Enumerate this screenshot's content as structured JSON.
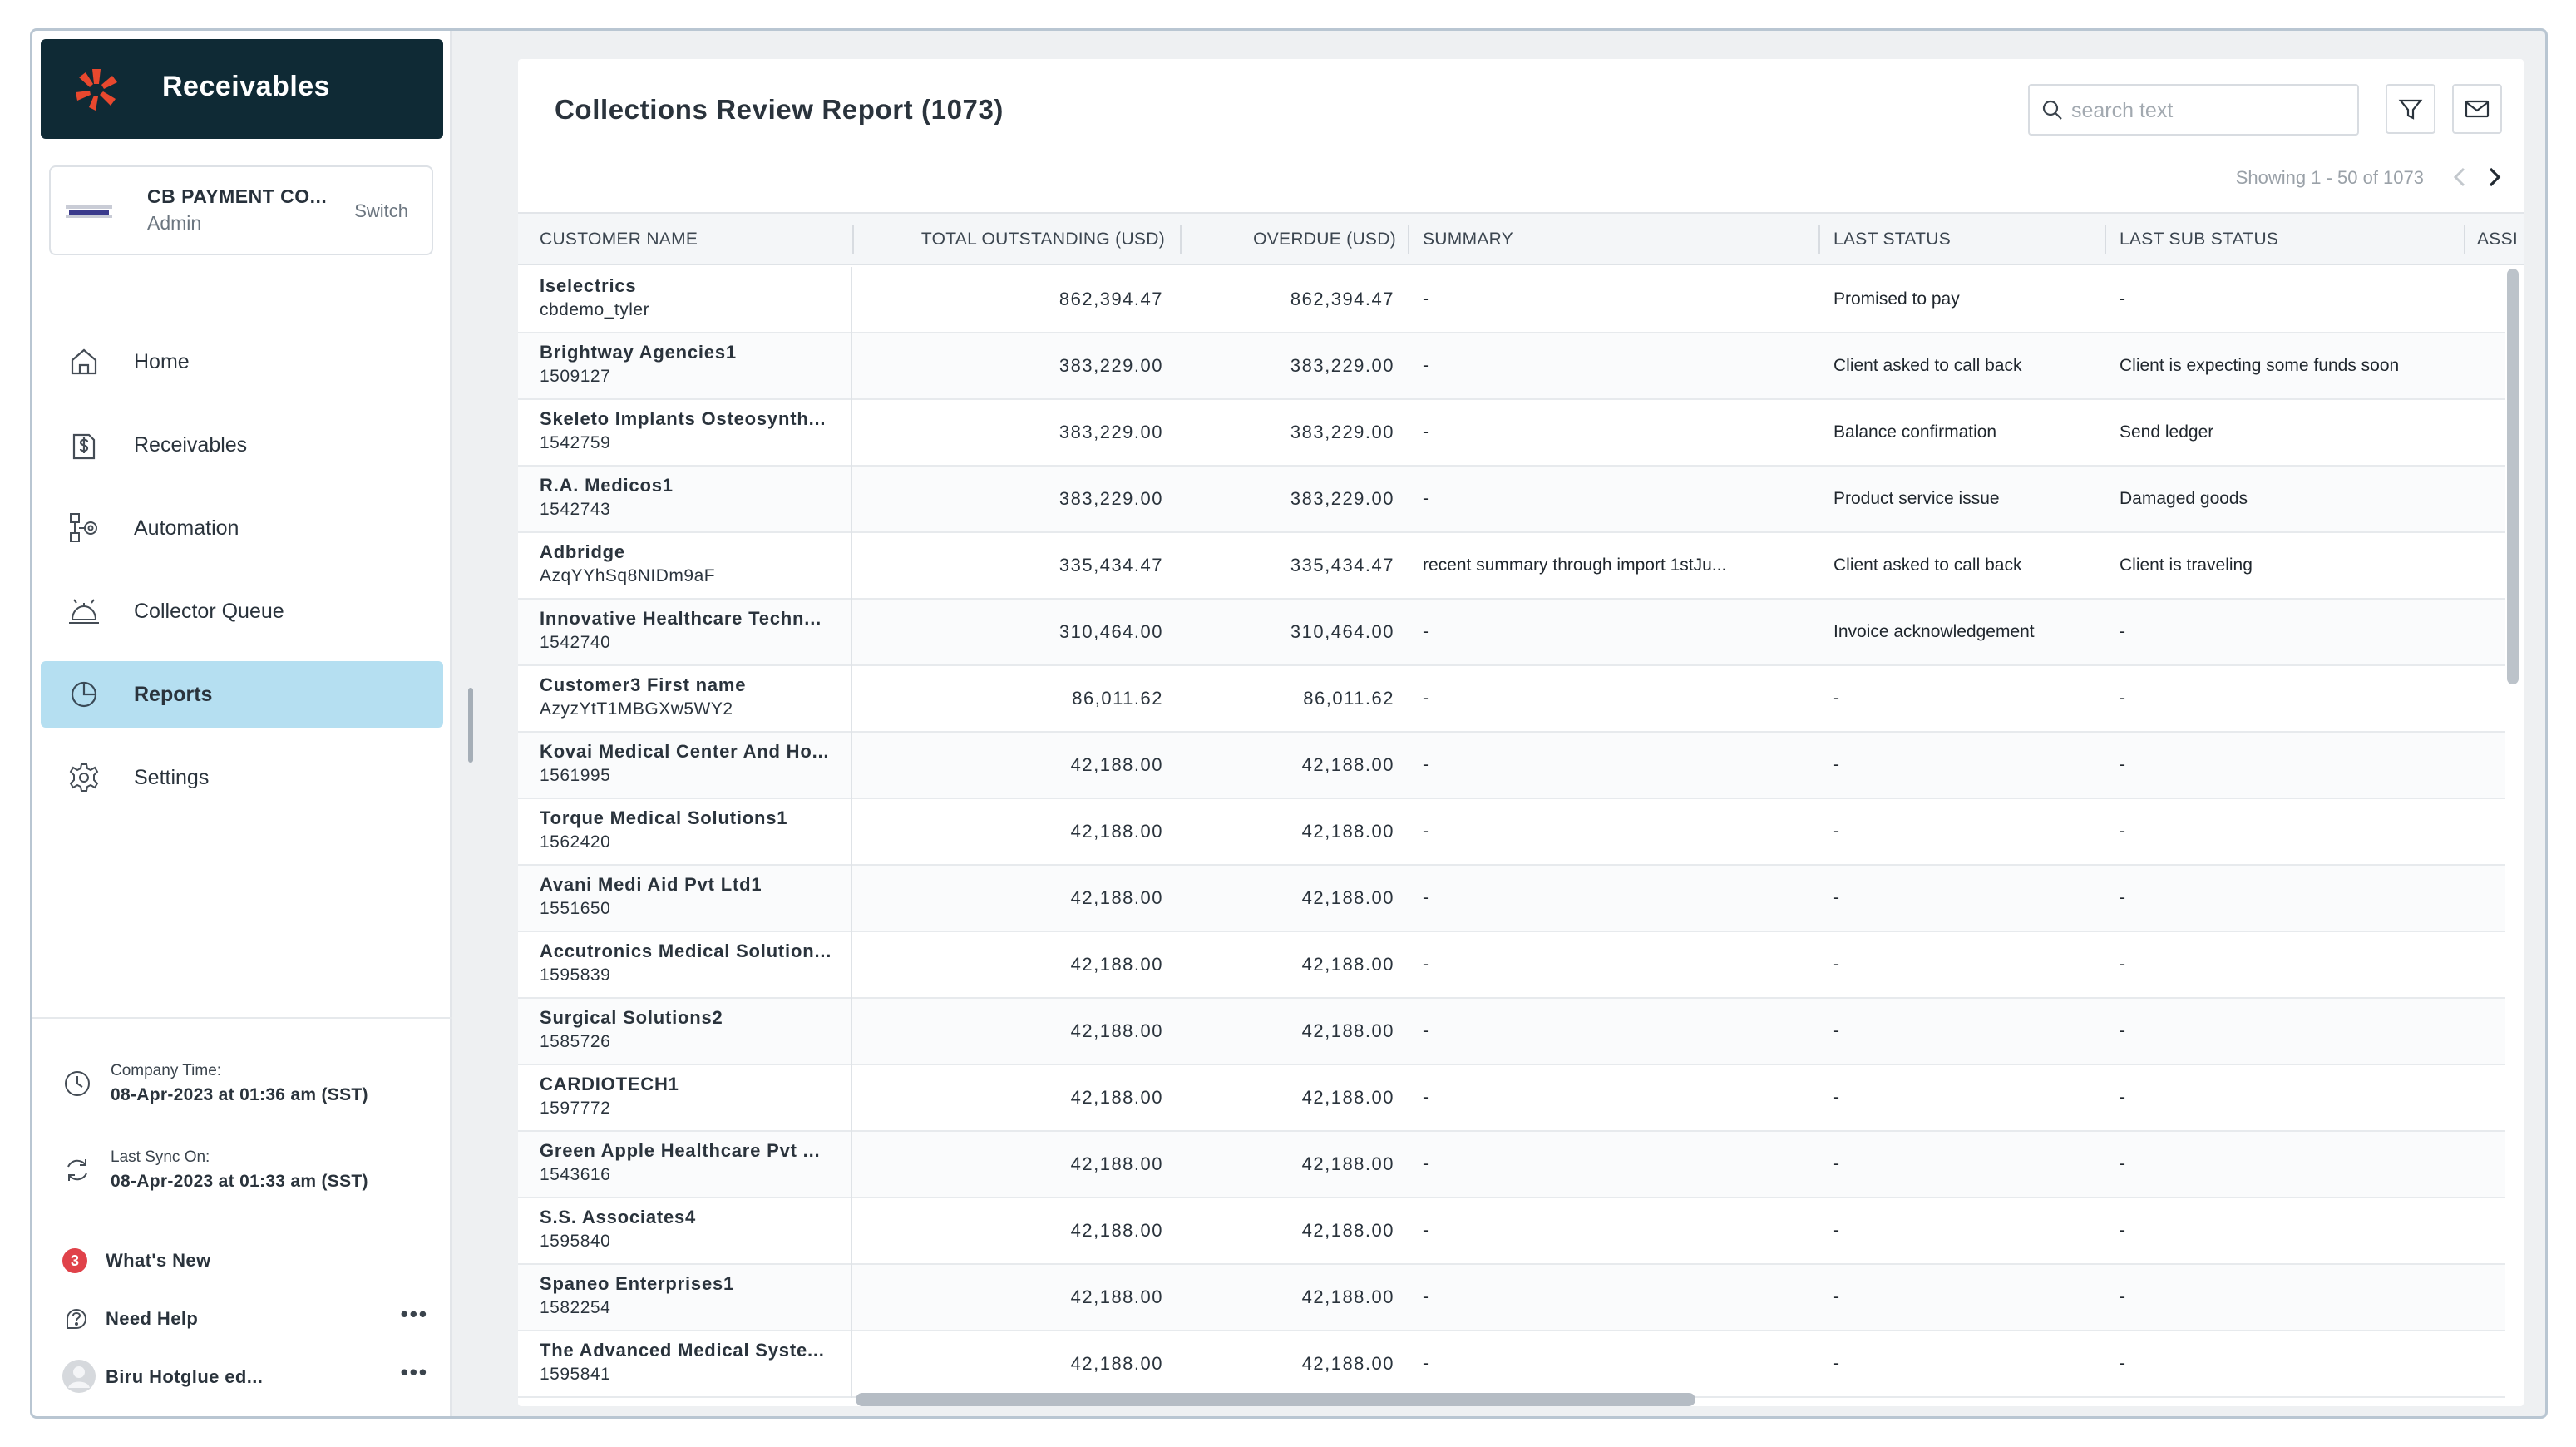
{
  "brand": {
    "title": "Receivables",
    "accent": "#e8482e"
  },
  "company": {
    "name": "CB PAYMENT CO...",
    "role": "Admin",
    "switch_label": "Switch"
  },
  "nav": [
    {
      "label": "Home",
      "icon": "home-icon"
    },
    {
      "label": "Receivables",
      "icon": "dollar-invoice-icon"
    },
    {
      "label": "Automation",
      "icon": "automation-icon"
    },
    {
      "label": "Collector Queue",
      "icon": "service-bell-icon"
    },
    {
      "label": "Reports",
      "icon": "pie-chart-icon",
      "active": true
    },
    {
      "label": "Settings",
      "icon": "gear-icon"
    }
  ],
  "meta": {
    "company_time_label": "Company Time:",
    "company_time_value": "08-Apr-2023 at 01:36 am (SST)",
    "last_sync_label": "Last Sync On:",
    "last_sync_value": "08-Apr-2023 at 01:33 am (SST)"
  },
  "footer": {
    "whats_new_count": "3",
    "whats_new_label": "What's New",
    "need_help_label": "Need Help",
    "user_label": "Biru Hotglue ed..."
  },
  "report": {
    "title": "Collections Review Report (1073)",
    "search_placeholder": "search text",
    "pager_text": "Showing 1 - 50 of 1073"
  },
  "table": {
    "columns": {
      "customer_name": "CUSTOMER NAME",
      "total_outstanding": "TOTAL OUTSTANDING (USD)",
      "overdue": "OVERDUE (USD)",
      "summary": "SUMMARY",
      "last_status": "LAST STATUS",
      "last_sub_status": "LAST SUB STATUS",
      "assigned": "ASSI"
    },
    "rows": [
      {
        "name": "Iselectrics",
        "id": "cbdemo_tyler",
        "total": "862,394.47",
        "overdue": "862,394.47",
        "summary": "-",
        "status": "Promised to pay",
        "sub_status": "-"
      },
      {
        "name": "Brightway Agencies1",
        "id": "1509127",
        "total": "383,229.00",
        "overdue": "383,229.00",
        "summary": "-",
        "status": "Client asked to call back",
        "sub_status": "Client is expecting some funds soon"
      },
      {
        "name": "Skeleto Implants Osteosynth...",
        "id": "1542759",
        "total": "383,229.00",
        "overdue": "383,229.00",
        "summary": "-",
        "status": "Balance confirmation",
        "sub_status": "Send ledger"
      },
      {
        "name": "R.A. Medicos1",
        "id": "1542743",
        "total": "383,229.00",
        "overdue": "383,229.00",
        "summary": "-",
        "status": "Product service issue",
        "sub_status": "Damaged goods"
      },
      {
        "name": "Adbridge",
        "id": "AzqYYhSq8NIDm9aF",
        "total": "335,434.47",
        "overdue": "335,434.47",
        "summary": "recent summary through import 1stJu...",
        "status": "Client asked to call back",
        "sub_status": "Client is traveling"
      },
      {
        "name": "Innovative Healthcare Techn...",
        "id": "1542740",
        "total": "310,464.00",
        "overdue": "310,464.00",
        "summary": "-",
        "status": "Invoice acknowledgement",
        "sub_status": "-"
      },
      {
        "name": "Customer3 First name",
        "id": "AzyzYtT1MBGXw5WY2",
        "total": "86,011.62",
        "overdue": "86,011.62",
        "summary": "-",
        "status": "-",
        "sub_status": "-"
      },
      {
        "name": "Kovai Medical Center And Ho...",
        "id": "1561995",
        "total": "42,188.00",
        "overdue": "42,188.00",
        "summary": "-",
        "status": "-",
        "sub_status": "-"
      },
      {
        "name": "Torque Medical Solutions1",
        "id": "1562420",
        "total": "42,188.00",
        "overdue": "42,188.00",
        "summary": "-",
        "status": "-",
        "sub_status": "-"
      },
      {
        "name": "Avani Medi Aid Pvt Ltd1",
        "id": "1551650",
        "total": "42,188.00",
        "overdue": "42,188.00",
        "summary": "-",
        "status": "-",
        "sub_status": "-"
      },
      {
        "name": "Accutronics Medical Solution...",
        "id": "1595839",
        "total": "42,188.00",
        "overdue": "42,188.00",
        "summary": "-",
        "status": "-",
        "sub_status": "-"
      },
      {
        "name": "Surgical Solutions2",
        "id": "1585726",
        "total": "42,188.00",
        "overdue": "42,188.00",
        "summary": "-",
        "status": "-",
        "sub_status": "-"
      },
      {
        "name": "CARDIOTECH1",
        "id": "1597772",
        "total": "42,188.00",
        "overdue": "42,188.00",
        "summary": "-",
        "status": "-",
        "sub_status": "-"
      },
      {
        "name": "Green Apple Healthcare Pvt ...",
        "id": "1543616",
        "total": "42,188.00",
        "overdue": "42,188.00",
        "summary": "-",
        "status": "-",
        "sub_status": "-"
      },
      {
        "name": "S.S. Associates4",
        "id": "1595840",
        "total": "42,188.00",
        "overdue": "42,188.00",
        "summary": "-",
        "status": "-",
        "sub_status": "-"
      },
      {
        "name": "Spaneo Enterprises1",
        "id": "1582254",
        "total": "42,188.00",
        "overdue": "42,188.00",
        "summary": "-",
        "status": "-",
        "sub_status": "-"
      },
      {
        "name": "The Advanced Medical Syste...",
        "id": "1595841",
        "total": "42,188.00",
        "overdue": "42,188.00",
        "summary": "-",
        "status": "-",
        "sub_status": "-"
      }
    ]
  }
}
